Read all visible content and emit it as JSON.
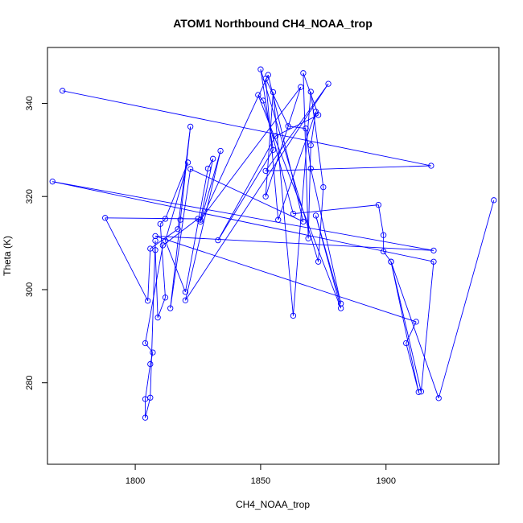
{
  "chart_data": {
    "type": "line",
    "title": "ATOM1 Northbound CH4_NOAA_trop",
    "xlabel": "CH4_NOAA_trop",
    "ylabel": "Theta (K)",
    "xlim": [
      1765,
      1945
    ],
    "ylim": [
      262.5,
      352
    ],
    "x_ticks": [
      1800,
      1850,
      1900
    ],
    "y_ticks": [
      280,
      300,
      320,
      340
    ],
    "series_color": "#0000ff",
    "point_marker": "open-circle",
    "grid": false,
    "series": [
      {
        "name": "CH4_NOAA_trop",
        "points": [
          [
            1771,
            342.7
          ],
          [
            1918,
            326.6
          ],
          [
            1852,
            325.5
          ],
          [
            1877,
            344.2
          ],
          [
            1820,
            297.7
          ],
          [
            1834,
            329.8
          ],
          [
            1826,
            314.6
          ],
          [
            1853,
            346.1
          ],
          [
            1867,
            314.6
          ],
          [
            1822,
            325.9
          ],
          [
            1814,
            296.0
          ],
          [
            1818,
            315.0
          ],
          [
            1822,
            335.0
          ],
          [
            1817,
            313.0
          ],
          [
            1806,
            308.8
          ],
          [
            1805,
            297.6
          ],
          [
            1788,
            315.4
          ],
          [
            1825,
            315.2
          ],
          [
            1811,
            309.5
          ],
          [
            1804,
            288.5
          ],
          [
            1807,
            286.5
          ],
          [
            1806,
            284.0
          ],
          [
            1804,
            276.5
          ],
          [
            1804,
            272.5
          ],
          [
            1806,
            276.8
          ],
          [
            1808,
            310.5
          ],
          [
            1808,
            308.5
          ],
          [
            1809,
            294.0
          ],
          [
            1812,
            298.3
          ],
          [
            1810,
            314.1
          ],
          [
            1812,
            315.2
          ],
          [
            1821,
            327.3
          ],
          [
            1812,
            310.5
          ],
          [
            1820,
            299.5
          ],
          [
            1829,
            326.0
          ],
          [
            1831,
            328.1
          ],
          [
            1826,
            315.0
          ],
          [
            1866,
            343.5
          ],
          [
            1852,
            320.0
          ],
          [
            1855,
            342.4
          ],
          [
            1863,
            294.4
          ],
          [
            1870,
            342.5
          ],
          [
            1875,
            322.0
          ],
          [
            1873,
            306.0
          ],
          [
            1850,
            347.3
          ],
          [
            1855,
            330.0
          ],
          [
            1833,
            310.6
          ],
          [
            1856,
            333.0
          ],
          [
            1873,
            337.5
          ],
          [
            1867,
            346.5
          ],
          [
            1869,
            311.0
          ],
          [
            1870,
            331.0
          ],
          [
            1872,
            338.2
          ],
          [
            1857,
            315.0
          ],
          [
            1852,
            345.3
          ],
          [
            1861,
            335.1
          ],
          [
            1868,
            334.6
          ],
          [
            1870,
            326.0
          ],
          [
            1882,
            297.0
          ],
          [
            1872,
            315.9
          ],
          [
            1882,
            296.0
          ],
          [
            1849,
            341.8
          ],
          [
            1851,
            340.6
          ],
          [
            1863,
            316.3
          ],
          [
            1897,
            318.2
          ],
          [
            1899,
            311.7
          ],
          [
            1899,
            308.2
          ],
          [
            1902,
            306.0
          ],
          [
            1913,
            278.0
          ],
          [
            1908,
            288.5
          ],
          [
            1912,
            293.1
          ],
          [
            1808,
            311.5
          ],
          [
            1919,
            308.4
          ],
          [
            1767,
            323.2
          ],
          [
            1919,
            306.0
          ],
          [
            1914,
            278.1
          ],
          [
            1902,
            306.0
          ],
          [
            1921,
            276.7
          ],
          [
            1943,
            319.2
          ]
        ]
      }
    ]
  }
}
